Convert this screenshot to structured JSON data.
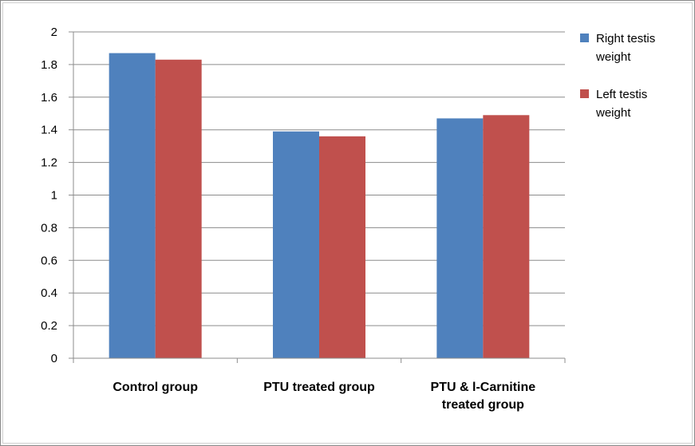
{
  "chart_data": {
    "type": "bar",
    "categories": [
      [
        "Control group"
      ],
      [
        "PTU treated group"
      ],
      [
        "PTU & l-Carnitine",
        "treated group"
      ]
    ],
    "series": [
      {
        "name": [
          "Right testis",
          "weight"
        ],
        "color": "#4f81bd",
        "values": [
          1.87,
          1.39,
          1.47
        ]
      },
      {
        "name": [
          "Left testis",
          "weight"
        ],
        "color": "#c0504d",
        "values": [
          1.83,
          1.36,
          1.49
        ]
      }
    ],
    "yticks": [
      "0",
      "0.2",
      "0.4",
      "0.6",
      "0.8",
      "1",
      "1.2",
      "1.4",
      "1.6",
      "1.8",
      "2"
    ],
    "ylim": [
      0,
      2
    ],
    "grid": true,
    "legend_position": "right"
  }
}
